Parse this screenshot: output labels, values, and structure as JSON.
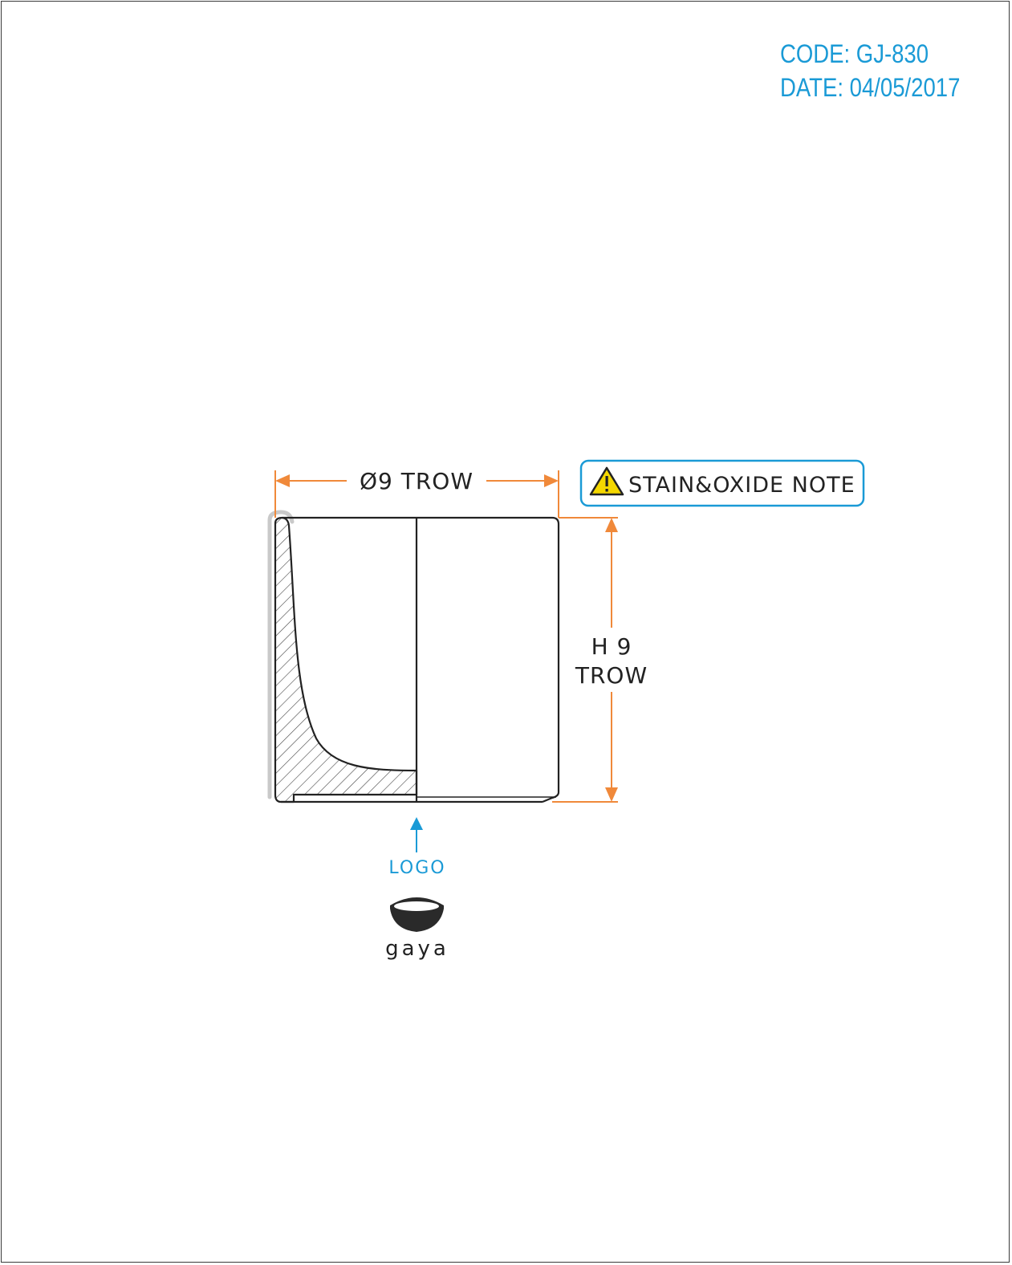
{
  "header": {
    "code": "CODE: GJ-830",
    "date": "DATE: 04/05/2017"
  },
  "drawing": {
    "diameter_label": "Ø9 TROW",
    "height_label_line1": "H 9",
    "height_label_line2": "TROW",
    "note_label": "STAIN&OXIDE NOTE",
    "logo_label": "LOGO",
    "brand_name": "gaya"
  },
  "colors": {
    "accent_blue": "#1a9ad6",
    "dimension_orange": "#f0893a",
    "outline": "#222222",
    "warning_yellow": "#f5d800"
  },
  "icons": [
    "warning-icon",
    "up-arrow-icon",
    "gaya-bowl-logo-icon"
  ]
}
